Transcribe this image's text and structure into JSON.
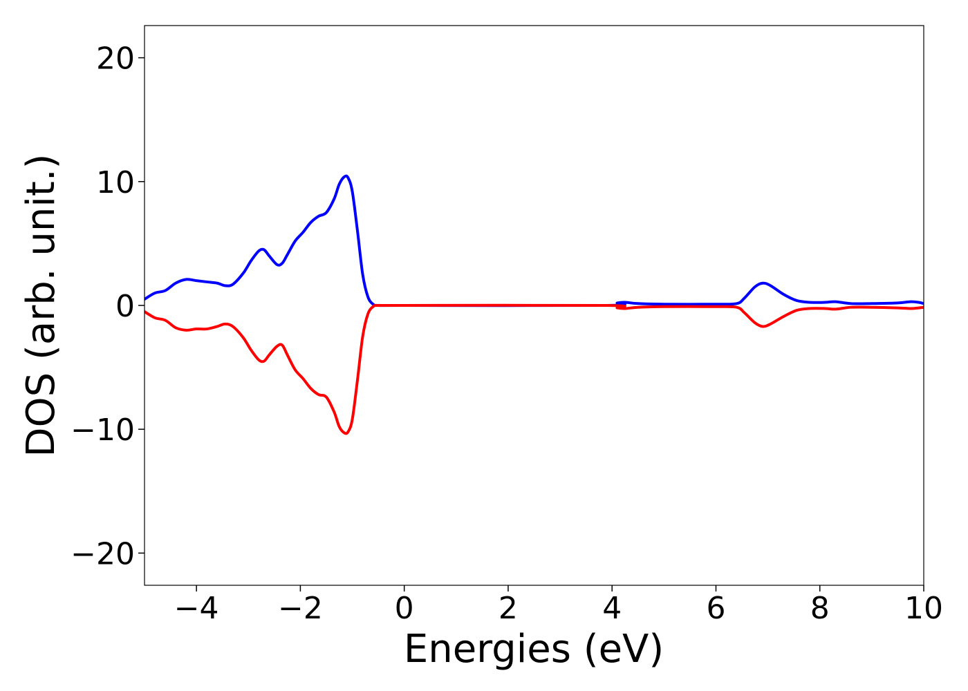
{
  "chart_data": {
    "type": "line",
    "title": "",
    "xlabel": "Energies (eV)",
    "ylabel": "DOS (arb. unit.)",
    "xlim": [
      -5,
      10
    ],
    "ylim": [
      -22.6,
      22.6
    ],
    "xticks": [
      -4,
      -2,
      0,
      2,
      4,
      6,
      8,
      10
    ],
    "xtick_labels": [
      "−4",
      "−2",
      "0",
      "2",
      "4",
      "6",
      "8",
      "10"
    ],
    "yticks": [
      -20,
      -10,
      0,
      10,
      20
    ],
    "ytick_labels": [
      "−20",
      "−10",
      "0",
      "10",
      "20"
    ],
    "grid": false,
    "legend": "none",
    "series": [
      {
        "color": "#0000ff",
        "x": [
          -5.0,
          -4.8,
          -4.6,
          -4.4,
          -4.2,
          -4.0,
          -3.8,
          -3.6,
          -3.45,
          -3.3,
          -3.1,
          -2.95,
          -2.8,
          -2.7,
          -2.6,
          -2.45,
          -2.35,
          -2.25,
          -2.1,
          -1.95,
          -1.8,
          -1.65,
          -1.5,
          -1.35,
          -1.25,
          -1.15,
          -1.08,
          -1.0,
          -0.9,
          -0.8,
          -0.7,
          -0.6,
          -0.5,
          0.0,
          3.9,
          4.1,
          4.25,
          4.5,
          5.0,
          6.0,
          6.4,
          6.55,
          6.75,
          6.9,
          7.05,
          7.3,
          7.55,
          7.8,
          8.1,
          8.3,
          8.6,
          9.0,
          9.5,
          9.75,
          9.9,
          10.0
        ],
        "y": [
          0.5,
          1.0,
          1.2,
          1.8,
          2.1,
          2.0,
          1.9,
          1.8,
          1.6,
          1.7,
          2.6,
          3.6,
          4.4,
          4.5,
          4.0,
          3.3,
          3.4,
          4.1,
          5.2,
          5.9,
          6.7,
          7.2,
          7.5,
          8.6,
          9.8,
          10.4,
          10.3,
          9.2,
          6.0,
          2.5,
          0.7,
          0.1,
          0.0,
          0.0,
          0.0,
          0.2,
          0.25,
          0.15,
          0.1,
          0.1,
          0.15,
          0.6,
          1.5,
          1.8,
          1.6,
          0.9,
          0.4,
          0.25,
          0.25,
          0.3,
          0.15,
          0.15,
          0.2,
          0.3,
          0.25,
          0.15
        ]
      },
      {
        "color": "#ff0000",
        "x": [
          -5.0,
          -4.8,
          -4.6,
          -4.4,
          -4.2,
          -4.0,
          -3.8,
          -3.6,
          -3.45,
          -3.3,
          -3.1,
          -2.95,
          -2.8,
          -2.7,
          -2.6,
          -2.45,
          -2.35,
          -2.25,
          -2.1,
          -1.95,
          -1.8,
          -1.65,
          -1.5,
          -1.35,
          -1.25,
          -1.15,
          -1.08,
          -1.0,
          -0.9,
          -0.8,
          -0.7,
          -0.6,
          -0.5,
          0.0,
          3.9,
          4.1,
          4.25,
          4.5,
          5.0,
          6.0,
          6.4,
          6.55,
          6.75,
          6.9,
          7.05,
          7.3,
          7.55,
          7.8,
          8.1,
          8.3,
          8.6,
          9.0,
          9.5,
          9.75,
          9.9,
          10.0
        ],
        "y": [
          -0.5,
          -1.0,
          -1.2,
          -1.8,
          -2.0,
          -1.9,
          -1.9,
          -1.7,
          -1.5,
          -1.7,
          -2.6,
          -3.6,
          -4.4,
          -4.5,
          -4.0,
          -3.3,
          -3.2,
          -4.0,
          -5.2,
          -5.9,
          -6.7,
          -7.2,
          -7.4,
          -8.6,
          -9.8,
          -10.3,
          -10.2,
          -9.2,
          -6.0,
          -2.5,
          -0.7,
          -0.1,
          0.0,
          0.0,
          0.0,
          -0.2,
          -0.25,
          -0.15,
          -0.1,
          -0.1,
          -0.15,
          -0.6,
          -1.4,
          -1.7,
          -1.5,
          -0.9,
          -0.4,
          -0.25,
          -0.25,
          -0.3,
          -0.15,
          -0.15,
          -0.2,
          -0.25,
          -0.2,
          -0.15
        ]
      }
    ]
  }
}
